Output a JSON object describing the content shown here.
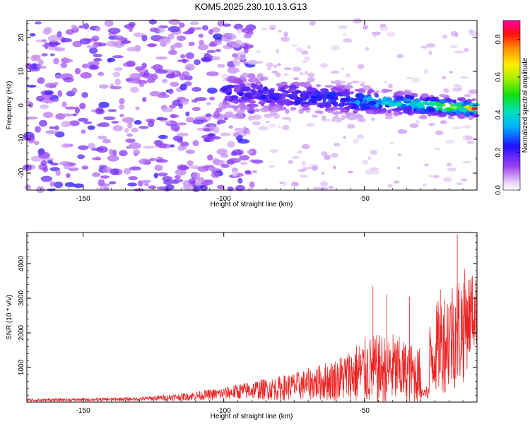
{
  "title": "KOM5.2025.230.10.13.G13",
  "colors": {
    "snr_line": "#ee2222",
    "axis": "#000000",
    "spectrogram_base": "#8a2be2"
  },
  "chart_data": [
    {
      "type": "heatmap",
      "name": "spectrogram",
      "xlabel": "Height of straight line (km)",
      "ylabel": "Frequency (Hz)",
      "xlim": [
        -170,
        -10
      ],
      "ylim": [
        -25,
        25
      ],
      "xticks": [
        -150,
        -100,
        -50
      ],
      "xtick_labels": [
        "-150",
        "-100",
        "-50"
      ],
      "yticks": [
        -20,
        -10,
        0,
        10,
        20
      ],
      "ytick_labels": [
        "-20",
        "-10",
        "0",
        "10",
        "20"
      ],
      "colorbar": {
        "label": "Normalized spectral amplitude",
        "range": [
          0,
          0.9
        ],
        "ticks": [
          0,
          0.2,
          0.4,
          0.6,
          0.8
        ],
        "tick_labels": [
          "0.0",
          "0.2",
          "0.4",
          "0.6",
          "0.8"
        ]
      },
      "features": [
        {
          "name": "diffuse noise",
          "x_range": [
            -170,
            -100
          ],
          "freq_range": [
            -25,
            25
          ],
          "amplitude": 0.05
        },
        {
          "name": "ridge",
          "x_range": [
            -100,
            -10
          ],
          "freq_start": 4,
          "freq_end": -1,
          "amplitude_start": 0.1,
          "amplitude_end": 0.9
        }
      ]
    },
    {
      "type": "line",
      "name": "snr",
      "xlabel": "Height of straight line (km)",
      "ylabel": "SNR (10 * v/v)",
      "xlim": [
        -170,
        -10
      ],
      "ylim": [
        0,
        4900
      ],
      "xticks": [
        -150,
        -100,
        -50
      ],
      "xtick_labels": [
        "-150",
        "-100",
        "-50"
      ],
      "yticks": [
        1000,
        2000,
        3000,
        4000
      ],
      "ytick_labels": [
        "1000",
        "2000",
        "3000",
        "4000"
      ],
      "envelope": {
        "x": [
          -170,
          -150,
          -130,
          -115,
          -100,
          -90,
          -80,
          -70,
          -60,
          -50,
          -40,
          -35,
          -30,
          -25,
          -20,
          -15,
          -12,
          -10
        ],
        "mean": [
          60,
          70,
          90,
          150,
          250,
          350,
          400,
          520,
          650,
          900,
          950,
          850,
          750,
          1500,
          1900,
          2200,
          2600,
          2600
        ],
        "amplitude": [
          40,
          45,
          60,
          120,
          200,
          300,
          400,
          500,
          700,
          1100,
          1200,
          1000,
          900,
          1400,
          1800,
          1900,
          1300,
          1100
        ]
      },
      "peaks": [
        {
          "x": -17,
          "y": 4850
        },
        {
          "x": -47,
          "y": 3350
        },
        {
          "x": -42,
          "y": 3100
        },
        {
          "x": -34,
          "y": 3050
        },
        {
          "x": -23,
          "y": 3250
        },
        {
          "x": -12,
          "y": 3600
        }
      ]
    }
  ]
}
